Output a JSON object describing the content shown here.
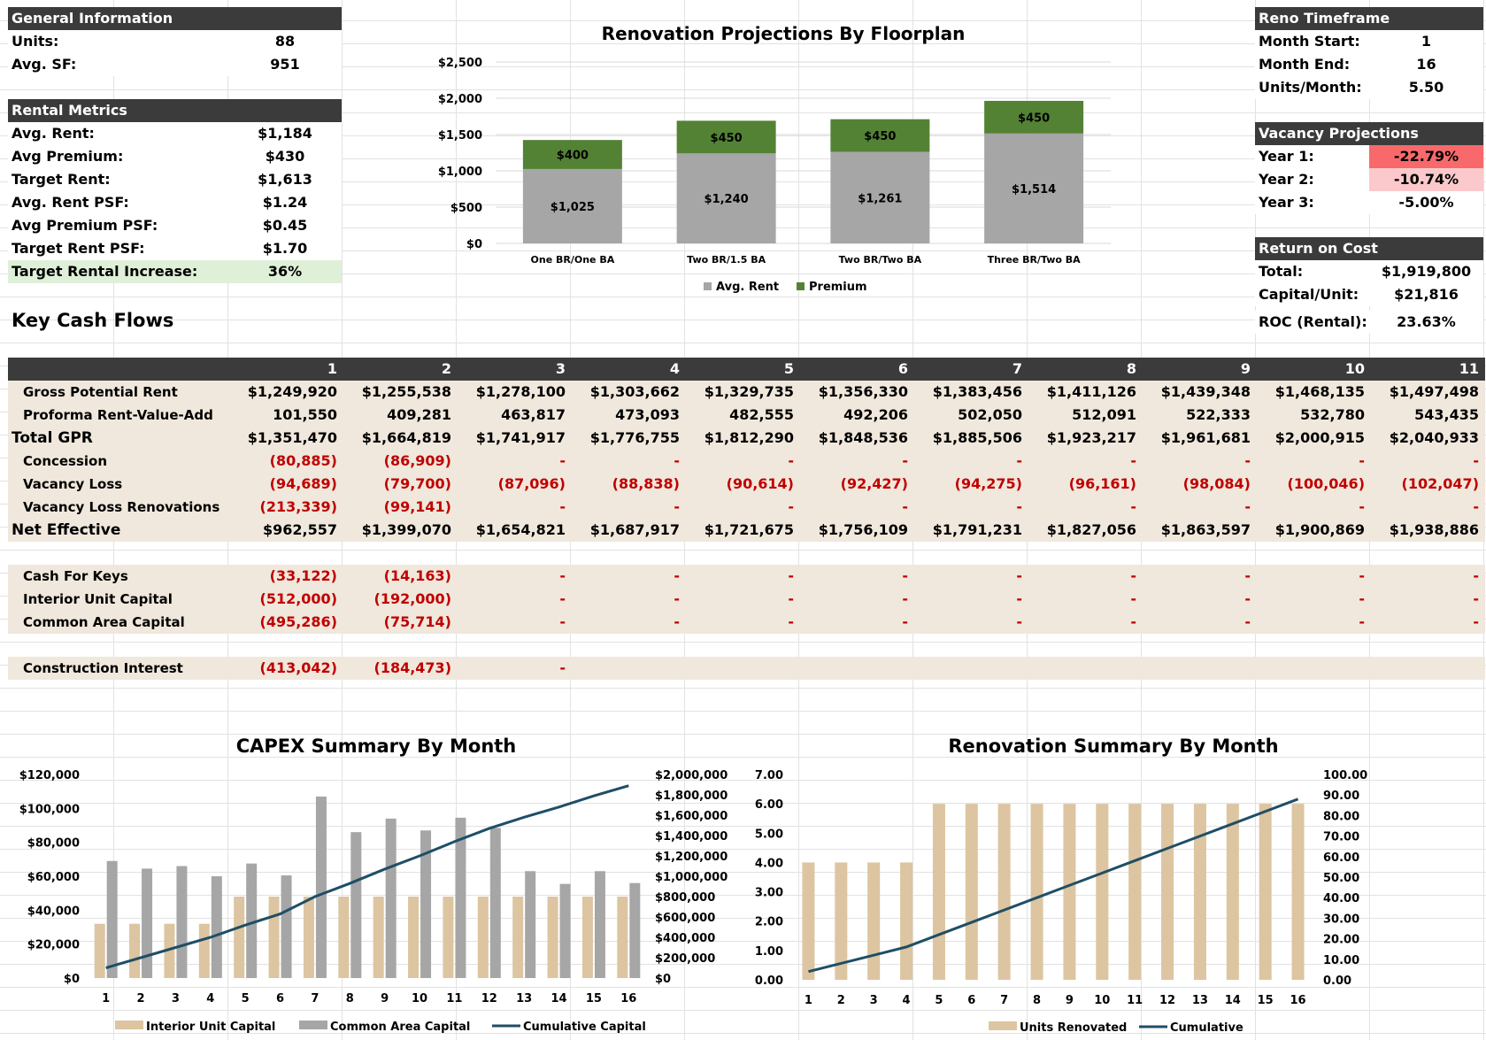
{
  "general": {
    "title": "General Information",
    "rows": [
      {
        "label": "Units:",
        "value": "88"
      },
      {
        "label": "Avg. SF:",
        "value": "951"
      }
    ]
  },
  "rental": {
    "title": "Rental Metrics",
    "rows": [
      {
        "label": "Avg. Rent:",
        "value": "$1,184"
      },
      {
        "label": "Avg Premium:",
        "value": "$430"
      },
      {
        "label": "Target Rent:",
        "value": "$1,613"
      },
      {
        "label": "Avg. Rent PSF:",
        "value": "$1.24"
      },
      {
        "label": "Avg Premium PSF:",
        "value": "$0.45"
      },
      {
        "label": "Target Rent PSF:",
        "value": "$1.70"
      },
      {
        "label": "Target Rental Increase:",
        "value": "36%"
      }
    ],
    "highlight_color": "#dff0d8"
  },
  "reno": {
    "title": "Reno Timeframe",
    "rows": [
      {
        "label": "Month Start:",
        "value": "1"
      },
      {
        "label": "Month End:",
        "value": "16"
      },
      {
        "label": "Units/Month:",
        "value": "5.50"
      }
    ]
  },
  "vacancy": {
    "title": "Vacancy Projections",
    "rows": [
      {
        "label": "Year 1:",
        "value": "-22.79%",
        "color": "#f8696b"
      },
      {
        "label": "Year 2:",
        "value": "-10.74%",
        "color": "#fbc9cb"
      },
      {
        "label": "Year 3:",
        "value": "-5.00%",
        "color": "#ffffff"
      }
    ]
  },
  "roc": {
    "title": "Return on Cost",
    "rows": [
      {
        "label": "Total:",
        "value": "$1,919,800"
      },
      {
        "label": "Capital/Unit:",
        "value": "$21,816"
      },
      {
        "label": "ROC (Rental):",
        "value": "23.63%"
      }
    ]
  },
  "cash": {
    "title": "Key Cash Flows",
    "months": [
      "1",
      "2",
      "3",
      "4",
      "5",
      "6",
      "7",
      "8",
      "9",
      "10",
      "11"
    ],
    "rows": [
      {
        "label": "Gross Potential Rent",
        "indent": true,
        "values": [
          "$1,249,920",
          "$1,255,538",
          "$1,278,100",
          "$1,303,662",
          "$1,329,735",
          "$1,356,330",
          "$1,383,456",
          "$1,411,126",
          "$1,439,348",
          "$1,468,135",
          "$1,497,498"
        ]
      },
      {
        "label": "Proforma Rent-Value-Add",
        "indent": true,
        "values": [
          "101,550",
          "409,281",
          "463,817",
          "473,093",
          "482,555",
          "492,206",
          "502,050",
          "512,091",
          "522,333",
          "532,780",
          "543,435"
        ]
      },
      {
        "label": "Total GPR",
        "indent": false,
        "values": [
          "$1,351,470",
          "$1,664,819",
          "$1,741,917",
          "$1,776,755",
          "$1,812,290",
          "$1,848,536",
          "$1,885,506",
          "$1,923,217",
          "$1,961,681",
          "$2,000,915",
          "$2,040,933"
        ]
      },
      {
        "label": "Concession",
        "indent": true,
        "red": true,
        "values": [
          "(80,885)",
          "(86,909)",
          "-",
          "-",
          "-",
          "-",
          "-",
          "-",
          "-",
          "-",
          "-"
        ]
      },
      {
        "label": "Vacancy Loss",
        "indent": true,
        "red": true,
        "values": [
          "(94,689)",
          "(79,700)",
          "(87,096)",
          "(88,838)",
          "(90,614)",
          "(92,427)",
          "(94,275)",
          "(96,161)",
          "(98,084)",
          "(100,046)",
          "(102,047)"
        ]
      },
      {
        "label": "Vacancy Loss Renovations",
        "indent": true,
        "red": true,
        "values": [
          "(213,339)",
          "(99,141)",
          "-",
          "-",
          "-",
          "-",
          "-",
          "-",
          "-",
          "-",
          "-"
        ]
      },
      {
        "label": "Net Effective",
        "indent": false,
        "values": [
          "$962,557",
          "$1,399,070",
          "$1,654,821",
          "$1,687,917",
          "$1,721,675",
          "$1,756,109",
          "$1,791,231",
          "$1,827,056",
          "$1,863,597",
          "$1,900,869",
          "$1,938,886"
        ]
      }
    ],
    "capital_rows": [
      {
        "label": "Cash For Keys",
        "values": [
          "(33,122)",
          "(14,163)",
          "-",
          "-",
          "-",
          "-",
          "-",
          "-",
          "-",
          "-",
          "-"
        ]
      },
      {
        "label": "Interior Unit Capital",
        "values": [
          "(512,000)",
          "(192,000)",
          "-",
          "-",
          "-",
          "-",
          "-",
          "-",
          "-",
          "-",
          "-"
        ]
      },
      {
        "label": "Common Area Capital",
        "values": [
          "(495,286)",
          "(75,714)",
          "-",
          "-",
          "-",
          "-",
          "-",
          "-",
          "-",
          "-",
          "-"
        ]
      }
    ],
    "interest_row": {
      "label": "Construction Interest",
      "values": [
        "(413,042)",
        "(184,473)",
        "-"
      ]
    }
  },
  "chart_data": [
    {
      "type": "bar",
      "title": "Renovation Projections By Floorplan",
      "stacked": true,
      "categories": [
        "One BR/One BA",
        "Two BR/1.5 BA",
        "Two BR/Two BA",
        "Three BR/Two BA"
      ],
      "series": [
        {
          "name": "Avg. Rent",
          "values": [
            1025,
            1240,
            1261,
            1514
          ],
          "labels": [
            "$1,025",
            "$1,240",
            "$1,261",
            "$1,514"
          ],
          "color": "#a6a6a6"
        },
        {
          "name": "Premium",
          "values": [
            400,
            450,
            450,
            450
          ],
          "labels": [
            "$400",
            "$450",
            "$450",
            "$450"
          ],
          "color": "#548235"
        }
      ],
      "ylim": [
        0,
        2500
      ],
      "yticks": [
        "$0",
        "$500",
        "$1,000",
        "$1,500",
        "$2,000",
        "$2,500"
      ],
      "legend": "bottom"
    },
    {
      "type": "bar",
      "title": "CAPEX Summary By Month",
      "categories": [
        "1",
        "2",
        "3",
        "4",
        "5",
        "6",
        "7",
        "8",
        "9",
        "10",
        "11",
        "12",
        "13",
        "14",
        "15",
        "16"
      ],
      "series": [
        {
          "name": "Interior Unit Capital",
          "values": [
            32000,
            32000,
            32000,
            32000,
            48000,
            48000,
            48000,
            48000,
            48000,
            48000,
            48000,
            48000,
            48000,
            48000,
            48000,
            48000
          ],
          "color": "#dcc5a0"
        },
        {
          "name": "Common Area Capital",
          "values": [
            69000,
            64500,
            66000,
            60000,
            67500,
            60500,
            107000,
            86000,
            94000,
            87000,
            94500,
            88500,
            63000,
            55500,
            63000,
            56000
          ],
          "color": "#a6a6a6"
        },
        {
          "name": "Cumulative Capital",
          "type": "line",
          "axis": "secondary",
          "values": [
            100000,
            200000,
            300000,
            400000,
            520000,
            630000,
            800000,
            930000,
            1070000,
            1200000,
            1340000,
            1470000,
            1580000,
            1680000,
            1790000,
            1890000
          ],
          "color": "#1f4e66"
        }
      ],
      "ylim": [
        0,
        120000
      ],
      "yticks": [
        "$0",
        "$20,000",
        "$40,000",
        "$60,000",
        "$80,000",
        "$100,000",
        "$120,000"
      ],
      "y2lim": [
        0,
        2000000
      ],
      "y2ticks": [
        "$0",
        "$200,000",
        "$400,000",
        "$600,000",
        "$800,000",
        "$1,000,000",
        "$1,200,000",
        "$1,400,000",
        "$1,600,000",
        "$1,800,000",
        "$2,000,000"
      ],
      "legend": "bottom"
    },
    {
      "type": "bar",
      "title": "Renovation Summary By Month",
      "categories": [
        "1",
        "2",
        "3",
        "4",
        "5",
        "6",
        "7",
        "8",
        "9",
        "10",
        "11",
        "12",
        "13",
        "14",
        "15",
        "16"
      ],
      "series": [
        {
          "name": "Units Renovated",
          "values": [
            4,
            4,
            4,
            4,
            6,
            6,
            6,
            6,
            6,
            6,
            6,
            6,
            6,
            6,
            6,
            6
          ],
          "color": "#dcc5a0"
        },
        {
          "name": "Cumulative",
          "type": "line",
          "axis": "secondary",
          "values": [
            4,
            8,
            12,
            16,
            22,
            28,
            34,
            40,
            46,
            52,
            58,
            64,
            70,
            76,
            82,
            88
          ],
          "color": "#1f4e66"
        }
      ],
      "ylim": [
        0,
        7
      ],
      "yticks": [
        "0.00",
        "1.00",
        "2.00",
        "3.00",
        "4.00",
        "5.00",
        "6.00",
        "7.00"
      ],
      "y2lim": [
        0,
        100
      ],
      "y2ticks": [
        "0.00",
        "10.00",
        "20.00",
        "30.00",
        "40.00",
        "50.00",
        "60.00",
        "70.00",
        "80.00",
        "90.00",
        "100.00"
      ],
      "legend": "bottom"
    }
  ]
}
